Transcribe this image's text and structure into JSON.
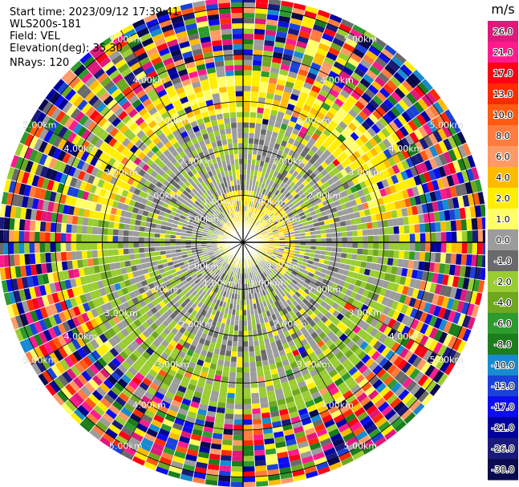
{
  "info": {
    "start_time": "Start time: 2023/09/12 17:39:41",
    "instrument": "WLS200s-181",
    "field": "Field: VEL",
    "elevation": "Elevation(deg): 35.30",
    "nrays": "NRays: 120"
  },
  "chart_data": {
    "type": "heatmap",
    "title": "",
    "projection": "polar",
    "n_rays": 120,
    "range_unit": "km",
    "range_rings": [
      {
        "range": 1.0,
        "label": "1.00km"
      },
      {
        "range": 2.0,
        "label": "2.00km"
      },
      {
        "range": 3.0,
        "label": "3.00km"
      },
      {
        "range": 4.0,
        "label": "4.00km"
      },
      {
        "range": 5.0,
        "label": "5.00km"
      }
    ],
    "colorbar": {
      "unit": "m/s",
      "ticks": [
        "26.0",
        "21.0",
        "17.0",
        "13.0",
        "10.0",
        "8.0",
        "6.0",
        "4.0",
        "2.0",
        "1.0",
        "0.0",
        "-1.0",
        "-2.0",
        "-4.0",
        "-6.0",
        "-8.0",
        "-10.0",
        "-13.0",
        "-17.0",
        "-21.0",
        "-26.0",
        "-30.0"
      ],
      "colors": [
        "#e0187c",
        "#ff1b8d",
        "#ff0015",
        "#ff2a00",
        "#ff5a12",
        "#ff7b3e",
        "#ff9a66",
        "#ffbb00",
        "#ffee00",
        "#ffff66",
        "#9c9c9c",
        "#6a6a6a",
        "#9acd32",
        "#6fa820",
        "#2d9b2d",
        "#1b7d1b",
        "#178ad0",
        "#1a42d8",
        "#0c0cee",
        "#00009c",
        "#1a1a7c",
        "#0a0a50"
      ]
    },
    "regions": [
      {
        "range_km": [
          0.0,
          0.9
        ],
        "dominant": "2.0 to 4.0 m/s (yellow)",
        "note": "north/east sectors"
      },
      {
        "range_km": [
          0.5,
          3.2
        ],
        "dominant": "-1.0 to 0.0 m/s (gray) with -2.0 (light green)"
      },
      {
        "range_km": [
          2.6,
          3.6
        ],
        "dominant": "-2.0 to -4.0 m/s (green)",
        "note": "south/southwest sectors"
      },
      {
        "range_km": [
          2.8,
          3.8
        ],
        "dominant": "2.0 to 4.0 m/s (yellow)",
        "note": "north sector"
      },
      {
        "range_km": [
          3.6,
          5.6
        ],
        "dominant": "noise, all values -30.0 to 26.0 m/s"
      }
    ]
  }
}
